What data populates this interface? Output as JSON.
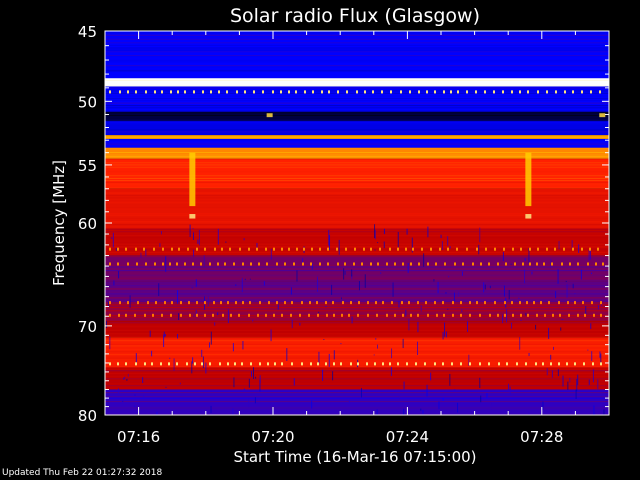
{
  "chart_data": {
    "type": "heatmap",
    "title": "Solar radio Flux (Glasgow)",
    "ylabel": "Frequency [MHz]",
    "xlabel": "Start Time (16-Mar-16 07:15:00)",
    "x_unit": "minutes after 07:15:00",
    "xlim": [
      0,
      15
    ],
    "ylim": [
      45,
      80
    ],
    "y_scale": "log",
    "y_inverted": true,
    "x_ticks": [
      {
        "value": 1,
        "label": "07:16"
      },
      {
        "value": 5,
        "label": "07:20"
      },
      {
        "value": 9,
        "label": "07:24"
      },
      {
        "value": 13,
        "label": "07:28"
      }
    ],
    "y_ticks": [
      {
        "value": 45,
        "label": "45"
      },
      {
        "value": 50,
        "label": "50"
      },
      {
        "value": 55,
        "label": "55"
      },
      {
        "value": 60,
        "label": "60"
      },
      {
        "value": 70,
        "label": "70"
      },
      {
        "value": 80,
        "label": "80"
      }
    ],
    "colormap": [
      "#000000",
      "#0000ff",
      "#c00000",
      "#ff2000",
      "#ffcc00",
      "#ffffff"
    ],
    "frequency_bands": [
      {
        "from": 45,
        "to": 48.3,
        "level": 0.2
      },
      {
        "from": 48.3,
        "to": 48.9,
        "level": 1.0
      },
      {
        "from": 48.9,
        "to": 50.8,
        "level": 0.2
      },
      {
        "from": 50.8,
        "to": 51.5,
        "level": 0.05
      },
      {
        "from": 51.5,
        "to": 52.6,
        "level": 0.18
      },
      {
        "from": 52.6,
        "to": 52.9,
        "level": 0.75
      },
      {
        "from": 52.9,
        "to": 53.6,
        "level": 0.2
      },
      {
        "from": 53.6,
        "to": 54.5,
        "level": 0.72
      },
      {
        "from": 54.5,
        "to": 57.0,
        "level": 0.6
      },
      {
        "from": 57.0,
        "to": 60.5,
        "level": 0.52
      },
      {
        "from": 60.5,
        "to": 63.0,
        "level": 0.42
      },
      {
        "from": 63.0,
        "to": 65.5,
        "level": 0.32
      },
      {
        "from": 65.5,
        "to": 67.5,
        "level": 0.3
      },
      {
        "from": 67.5,
        "to": 69.5,
        "level": 0.35
      },
      {
        "from": 69.5,
        "to": 71.2,
        "level": 0.4
      },
      {
        "from": 71.2,
        "to": 74.5,
        "level": 0.58
      },
      {
        "from": 74.5,
        "to": 77.0,
        "level": 0.4
      },
      {
        "from": 77.0,
        "to": 80.0,
        "level": 0.25
      }
    ],
    "bright_features": [
      {
        "time": 2.6,
        "freq_from": 54.0,
        "freq_to": 58.5,
        "level": 0.8
      },
      {
        "time": 2.6,
        "freq_from": 59.2,
        "freq_to": 59.6,
        "level": 0.9
      },
      {
        "time": 12.6,
        "freq_from": 54.0,
        "freq_to": 58.5,
        "level": 0.8
      },
      {
        "time": 12.6,
        "freq_from": 59.2,
        "freq_to": 59.6,
        "level": 0.9
      },
      {
        "time": 4.9,
        "freq_from": 50.9,
        "freq_to": 51.2,
        "level": 0.85
      },
      {
        "time": 14.8,
        "freq_from": 50.9,
        "freq_to": 51.2,
        "level": 0.85
      }
    ],
    "dotted_lines": [
      {
        "freq": 49.3,
        "level": 0.9
      },
      {
        "freq": 62.4,
        "level": 0.72
      },
      {
        "freq": 63.8,
        "level": 0.72
      },
      {
        "freq": 67.6,
        "level": 0.7
      },
      {
        "freq": 68.9,
        "level": 0.7
      },
      {
        "freq": 74.1,
        "level": 0.9
      }
    ]
  },
  "footer": "Updated Thu Feb 22 01:27:32 2018"
}
